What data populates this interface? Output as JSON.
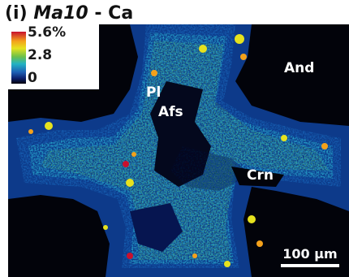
{
  "title": {
    "label": "(i)",
    "sample": "Ma10",
    "separator": "-",
    "element": "Ca"
  },
  "color_scale": {
    "max_label": "5.6%",
    "mid_label": "2.8",
    "min_label": "0",
    "colors": [
      "#c8102e",
      "#f4a11b",
      "#e6e21e",
      "#6cc04a",
      "#22b3c4",
      "#1e5fb5",
      "#0c1f6b",
      "#02030a"
    ]
  },
  "minerals": {
    "pl": "Pl",
    "afs": "Afs",
    "and": "And",
    "crn": "Crn"
  },
  "scale_bar": {
    "label": "100 μm"
  }
}
